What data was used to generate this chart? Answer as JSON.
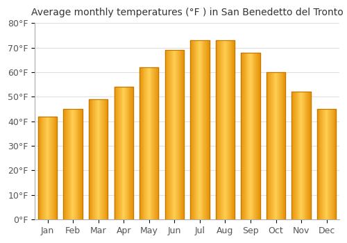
{
  "title": "Average monthly temperatures (°F ) in San Benedetto del Tronto",
  "months": [
    "Jan",
    "Feb",
    "Mar",
    "Apr",
    "May",
    "Jun",
    "Jul",
    "Aug",
    "Sep",
    "Oct",
    "Nov",
    "Dec"
  ],
  "values": [
    42,
    45,
    49,
    54,
    62,
    69,
    73,
    73,
    68,
    60,
    52,
    45
  ],
  "bar_color_edge": "#E8940A",
  "bar_color_center": "#FFD055",
  "ylim": [
    0,
    80
  ],
  "yticks": [
    0,
    10,
    20,
    30,
    40,
    50,
    60,
    70,
    80
  ],
  "ytick_labels": [
    "0°F",
    "10°F",
    "20°F",
    "30°F",
    "40°F",
    "50°F",
    "60°F",
    "70°F",
    "80°F"
  ],
  "background_color": "#ffffff",
  "grid_color": "#e0e0e0",
  "title_fontsize": 10,
  "tick_fontsize": 9,
  "bar_width": 0.75
}
